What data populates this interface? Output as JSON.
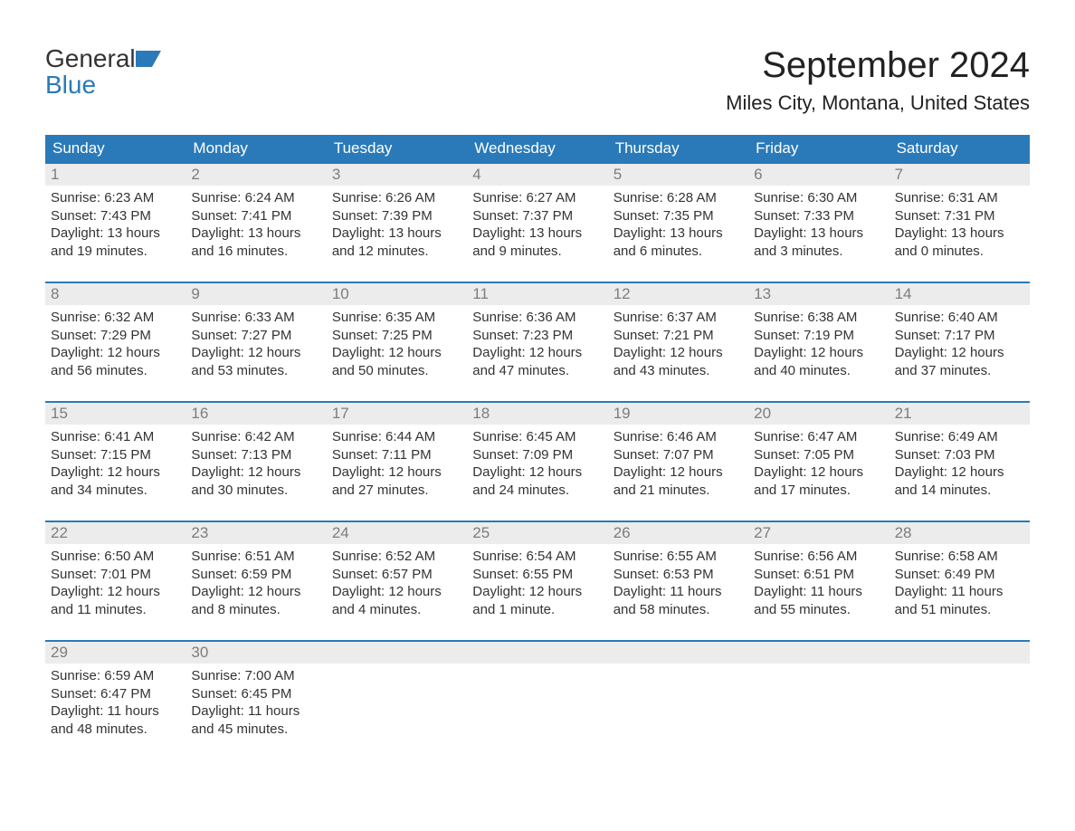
{
  "logo": {
    "word1": "General",
    "word2": "Blue"
  },
  "title": "September 2024",
  "location": "Miles City, Montana, United States",
  "colors": {
    "header_bg": "#2a7ab9",
    "header_text": "#ffffff",
    "daynum_bg": "#ececec",
    "daynum_text": "#7d7d7d",
    "week_border": "#2a7ab9",
    "body_text": "#333333",
    "page_bg": "#ffffff",
    "logo_blue": "#2a7ab9"
  },
  "font": {
    "body_size": 15,
    "daynum_size": 17,
    "title_size": 40,
    "location_size": 22
  },
  "days_of_week": [
    "Sunday",
    "Monday",
    "Tuesday",
    "Wednesday",
    "Thursday",
    "Friday",
    "Saturday"
  ],
  "weeks": [
    [
      {
        "n": "1",
        "sunrise": "Sunrise: 6:23 AM",
        "sunset": "Sunset: 7:43 PM",
        "daylight": "Daylight: 13 hours and 19 minutes."
      },
      {
        "n": "2",
        "sunrise": "Sunrise: 6:24 AM",
        "sunset": "Sunset: 7:41 PM",
        "daylight": "Daylight: 13 hours and 16 minutes."
      },
      {
        "n": "3",
        "sunrise": "Sunrise: 6:26 AM",
        "sunset": "Sunset: 7:39 PM",
        "daylight": "Daylight: 13 hours and 12 minutes."
      },
      {
        "n": "4",
        "sunrise": "Sunrise: 6:27 AM",
        "sunset": "Sunset: 7:37 PM",
        "daylight": "Daylight: 13 hours and 9 minutes."
      },
      {
        "n": "5",
        "sunrise": "Sunrise: 6:28 AM",
        "sunset": "Sunset: 7:35 PM",
        "daylight": "Daylight: 13 hours and 6 minutes."
      },
      {
        "n": "6",
        "sunrise": "Sunrise: 6:30 AM",
        "sunset": "Sunset: 7:33 PM",
        "daylight": "Daylight: 13 hours and 3 minutes."
      },
      {
        "n": "7",
        "sunrise": "Sunrise: 6:31 AM",
        "sunset": "Sunset: 7:31 PM",
        "daylight": "Daylight: 13 hours and 0 minutes."
      }
    ],
    [
      {
        "n": "8",
        "sunrise": "Sunrise: 6:32 AM",
        "sunset": "Sunset: 7:29 PM",
        "daylight": "Daylight: 12 hours and 56 minutes."
      },
      {
        "n": "9",
        "sunrise": "Sunrise: 6:33 AM",
        "sunset": "Sunset: 7:27 PM",
        "daylight": "Daylight: 12 hours and 53 minutes."
      },
      {
        "n": "10",
        "sunrise": "Sunrise: 6:35 AM",
        "sunset": "Sunset: 7:25 PM",
        "daylight": "Daylight: 12 hours and 50 minutes."
      },
      {
        "n": "11",
        "sunrise": "Sunrise: 6:36 AM",
        "sunset": "Sunset: 7:23 PM",
        "daylight": "Daylight: 12 hours and 47 minutes."
      },
      {
        "n": "12",
        "sunrise": "Sunrise: 6:37 AM",
        "sunset": "Sunset: 7:21 PM",
        "daylight": "Daylight: 12 hours and 43 minutes."
      },
      {
        "n": "13",
        "sunrise": "Sunrise: 6:38 AM",
        "sunset": "Sunset: 7:19 PM",
        "daylight": "Daylight: 12 hours and 40 minutes."
      },
      {
        "n": "14",
        "sunrise": "Sunrise: 6:40 AM",
        "sunset": "Sunset: 7:17 PM",
        "daylight": "Daylight: 12 hours and 37 minutes."
      }
    ],
    [
      {
        "n": "15",
        "sunrise": "Sunrise: 6:41 AM",
        "sunset": "Sunset: 7:15 PM",
        "daylight": "Daylight: 12 hours and 34 minutes."
      },
      {
        "n": "16",
        "sunrise": "Sunrise: 6:42 AM",
        "sunset": "Sunset: 7:13 PM",
        "daylight": "Daylight: 12 hours and 30 minutes."
      },
      {
        "n": "17",
        "sunrise": "Sunrise: 6:44 AM",
        "sunset": "Sunset: 7:11 PM",
        "daylight": "Daylight: 12 hours and 27 minutes."
      },
      {
        "n": "18",
        "sunrise": "Sunrise: 6:45 AM",
        "sunset": "Sunset: 7:09 PM",
        "daylight": "Daylight: 12 hours and 24 minutes."
      },
      {
        "n": "19",
        "sunrise": "Sunrise: 6:46 AM",
        "sunset": "Sunset: 7:07 PM",
        "daylight": "Daylight: 12 hours and 21 minutes."
      },
      {
        "n": "20",
        "sunrise": "Sunrise: 6:47 AM",
        "sunset": "Sunset: 7:05 PM",
        "daylight": "Daylight: 12 hours and 17 minutes."
      },
      {
        "n": "21",
        "sunrise": "Sunrise: 6:49 AM",
        "sunset": "Sunset: 7:03 PM",
        "daylight": "Daylight: 12 hours and 14 minutes."
      }
    ],
    [
      {
        "n": "22",
        "sunrise": "Sunrise: 6:50 AM",
        "sunset": "Sunset: 7:01 PM",
        "daylight": "Daylight: 12 hours and 11 minutes."
      },
      {
        "n": "23",
        "sunrise": "Sunrise: 6:51 AM",
        "sunset": "Sunset: 6:59 PM",
        "daylight": "Daylight: 12 hours and 8 minutes."
      },
      {
        "n": "24",
        "sunrise": "Sunrise: 6:52 AM",
        "sunset": "Sunset: 6:57 PM",
        "daylight": "Daylight: 12 hours and 4 minutes."
      },
      {
        "n": "25",
        "sunrise": "Sunrise: 6:54 AM",
        "sunset": "Sunset: 6:55 PM",
        "daylight": "Daylight: 12 hours and 1 minute."
      },
      {
        "n": "26",
        "sunrise": "Sunrise: 6:55 AM",
        "sunset": "Sunset: 6:53 PM",
        "daylight": "Daylight: 11 hours and 58 minutes."
      },
      {
        "n": "27",
        "sunrise": "Sunrise: 6:56 AM",
        "sunset": "Sunset: 6:51 PM",
        "daylight": "Daylight: 11 hours and 55 minutes."
      },
      {
        "n": "28",
        "sunrise": "Sunrise: 6:58 AM",
        "sunset": "Sunset: 6:49 PM",
        "daylight": "Daylight: 11 hours and 51 minutes."
      }
    ],
    [
      {
        "n": "29",
        "sunrise": "Sunrise: 6:59 AM",
        "sunset": "Sunset: 6:47 PM",
        "daylight": "Daylight: 11 hours and 48 minutes."
      },
      {
        "n": "30",
        "sunrise": "Sunrise: 7:00 AM",
        "sunset": "Sunset: 6:45 PM",
        "daylight": "Daylight: 11 hours and 45 minutes."
      },
      null,
      null,
      null,
      null,
      null
    ]
  ]
}
